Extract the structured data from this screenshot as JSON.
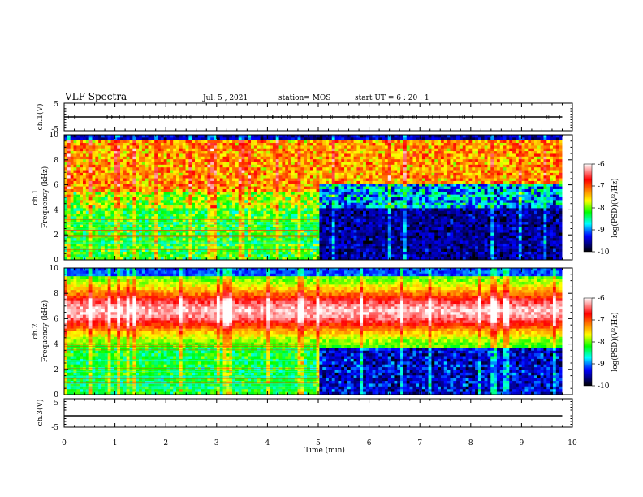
{
  "header": {
    "title": "VLF Spectra",
    "date": "Jul. 5 , 2021",
    "station": "station= MOS",
    "start": "start UT = 6 : 20 : 1"
  },
  "colorbar": {
    "label": "log(PSD)(V²/Hz)",
    "ticks": [
      "-6",
      "-7",
      "-8",
      "-9",
      "-10"
    ],
    "colors": [
      "#ffffff",
      "#ff0000",
      "#ffff00",
      "#00ff00",
      "#00ffff",
      "#0000ff",
      "#000044",
      "#000000"
    ]
  },
  "chart_data": [
    {
      "type": "line",
      "title": "VLF Spectra",
      "ylabel": "ch.1(V)",
      "xlabel": "",
      "xlim": [
        0,
        10
      ],
      "ylim": [
        -5,
        5
      ],
      "yticks": [
        "5",
        "-5"
      ],
      "series": [
        {
          "x": [
            0,
            9.8
          ],
          "y": [
            0,
            0
          ]
        }
      ]
    },
    {
      "type": "heatmap",
      "ylabel": "ch.1 Frequency (kHz)",
      "xlim": [
        0,
        10
      ],
      "ylim": [
        0,
        10
      ],
      "yticks": [
        "10",
        "8",
        "6",
        "4",
        "2",
        "0"
      ],
      "data_end_min": 9.8,
      "transition_min": 5.0
    },
    {
      "type": "heatmap",
      "ylabel": "ch.2 Frequency (kHz)",
      "xlim": [
        0,
        10
      ],
      "ylim": [
        0,
        10
      ],
      "yticks": [
        "10",
        "8",
        "6",
        "4",
        "2",
        "0"
      ],
      "data_end_min": 9.8,
      "transition_min": 5.0
    },
    {
      "type": "line",
      "ylabel": "ch.3(V)",
      "xlabel": "Time (min)",
      "xlim": [
        0,
        10
      ],
      "ylim": [
        -5,
        5
      ],
      "yticks": [
        "5",
        "-5"
      ],
      "xticks": [
        "0",
        "1",
        "2",
        "3",
        "4",
        "5",
        "6",
        "7",
        "8",
        "9",
        "10"
      ],
      "series": [
        {
          "x": [
            0,
            9.8
          ],
          "y": [
            -1,
            -1
          ]
        }
      ]
    }
  ]
}
